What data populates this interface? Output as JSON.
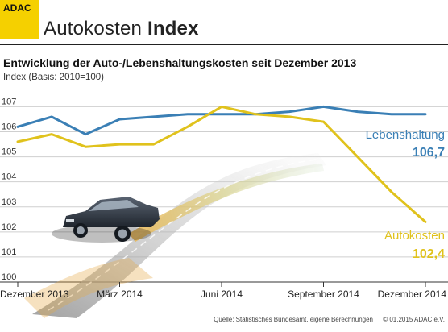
{
  "header": {
    "logo_text": "ADAC",
    "brand_light": "Autokosten",
    "brand_bold": "Index"
  },
  "footer": {
    "source": "Quelle: Statistisches Bundesamt, eigene Berechnungen",
    "copyright": "© 01.2015  ADAC e.V."
  },
  "colors": {
    "brand_yellow": "#f5d000",
    "lebenshaltung": "#3a7fb5",
    "autokosten": "#e0c21c"
  },
  "chart_data": {
    "type": "line",
    "title": "Entwicklung der Auto-/Lebenshaltungskosten seit Dezember 2013",
    "subtitle": "Index (Basis: 2010=100)",
    "xlabel": "",
    "ylabel": "",
    "ylim": [
      100,
      107.4
    ],
    "yticks": [
      "107",
      "106",
      "105",
      "104",
      "103",
      "102",
      "101",
      "100"
    ],
    "x_tick_labels": [
      "Dezember 2013",
      "März 2014",
      "Juni 2014",
      "September 2014",
      "Dezember 2014"
    ],
    "x_tick_positions": [
      0,
      3,
      6,
      9,
      12
    ],
    "grid": true,
    "series": [
      {
        "name": "Lebenshaltung",
        "end_value_label": "106,7",
        "color": "#3a7fb5",
        "values": [
          106.2,
          106.6,
          105.9,
          106.5,
          106.6,
          106.7,
          106.7,
          106.7,
          106.8,
          107.0,
          106.8,
          106.7,
          106.7
        ]
      },
      {
        "name": "Autokosten",
        "end_value_label": "102,4",
        "color": "#e0c21c",
        "values": [
          105.6,
          105.9,
          105.4,
          105.5,
          105.5,
          106.2,
          107.0,
          106.7,
          106.6,
          106.4,
          105.0,
          103.6,
          102.4
        ]
      }
    ]
  }
}
